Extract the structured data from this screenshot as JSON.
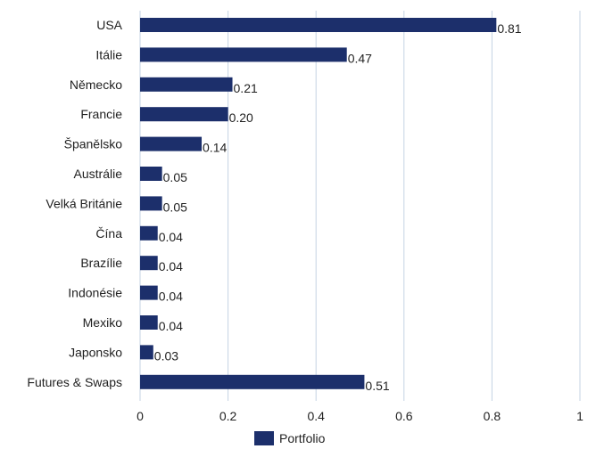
{
  "chart_data": {
    "type": "bar",
    "orientation": "horizontal",
    "categories": [
      "USA",
      "Itálie",
      "Německo",
      "Francie",
      "Španělsko",
      "Austrálie",
      "Velká Británie",
      "Čína",
      "Brazílie",
      "Indonésie",
      "Mexiko",
      "Japonsko",
      "Futures & Swaps"
    ],
    "series": [
      {
        "name": "Portfolio",
        "color": "#1c2f6b",
        "values": [
          0.81,
          0.47,
          0.21,
          0.2,
          0.14,
          0.05,
          0.05,
          0.04,
          0.04,
          0.04,
          0.04,
          0.03,
          0.51
        ],
        "value_labels": [
          "0.81",
          "0.47",
          "0.21",
          "0.20",
          "0.14",
          "0.05",
          "0.05",
          "0.04",
          "0.04",
          "0.04",
          "0.04",
          "0.03",
          "0.51"
        ]
      }
    ],
    "xlim": [
      0,
      1
    ],
    "x_ticks": [
      0,
      0.2,
      0.4,
      0.6,
      0.8,
      1
    ],
    "x_tick_labels": [
      "0",
      "0.2",
      "0.4",
      "0.6",
      "0.8",
      "1"
    ],
    "grid": "vertical",
    "gridline_color": "#c5d3e3",
    "legend_position": "bottom-center"
  }
}
